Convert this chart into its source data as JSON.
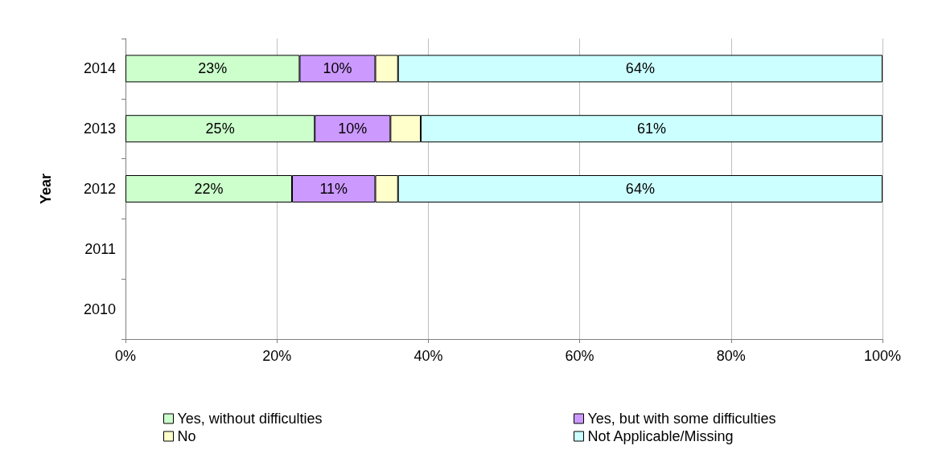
{
  "chart_data": {
    "type": "bar",
    "orientation": "horizontal",
    "stacked": true,
    "ylabel": "Year",
    "categories": [
      "2014",
      "2013",
      "2012",
      "2011",
      "2010"
    ],
    "series": [
      {
        "name": "Yes, without difficulties",
        "color": "#ccffcc",
        "values": [
          23,
          25,
          22,
          null,
          null
        ],
        "value_labels": [
          "23%",
          "25%",
          "22%",
          null,
          null
        ]
      },
      {
        "name": "Yes, but with some difficulties",
        "color": "#cc99ff",
        "values": [
          10,
          10,
          11,
          null,
          null
        ],
        "value_labels": [
          "10%",
          "10%",
          "11%",
          null,
          null
        ]
      },
      {
        "name": "No",
        "color": "#ffffcc",
        "values": [
          3,
          4,
          3,
          null,
          null
        ],
        "value_labels": [
          null,
          null,
          null,
          null,
          null
        ]
      },
      {
        "name": "Not Applicable/Missing",
        "color": "#ccffff",
        "values": [
          64,
          61,
          64,
          null,
          null
        ],
        "value_labels": [
          "64%",
          "61%",
          "64%",
          null,
          null
        ]
      }
    ],
    "xlim": [
      0,
      100
    ],
    "xticks": [
      {
        "value": 0,
        "label": "0%"
      },
      {
        "value": 20,
        "label": "20%"
      },
      {
        "value": 40,
        "label": "40%"
      },
      {
        "value": 60,
        "label": "60%"
      },
      {
        "value": 80,
        "label": "80%"
      },
      {
        "value": 100,
        "label": "100%"
      }
    ],
    "grid": "x",
    "legend": "bottom"
  }
}
